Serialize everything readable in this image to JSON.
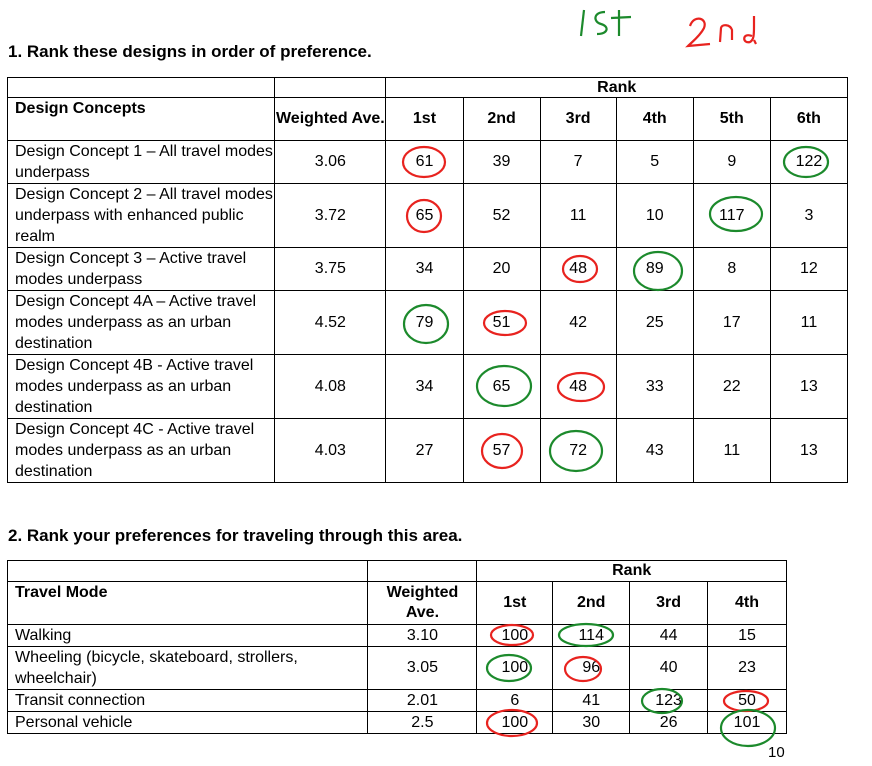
{
  "handwriting": {
    "first": "1st",
    "second": "2nd"
  },
  "q1": {
    "title": "1.  Rank these designs in order of preference.",
    "rank_header": "Rank",
    "col_concepts": "Design Concepts",
    "col_weighted": "Weighted Ave.",
    "ranks": [
      "1st",
      "2nd",
      "3rd",
      "4th",
      "5th",
      "6th"
    ],
    "rows": [
      {
        "name": "Design Concept 1 – All travel modes underpass",
        "avg": "3.06",
        "vals": [
          "61",
          "39",
          "7",
          "5",
          "9",
          "122"
        ]
      },
      {
        "name": "Design Concept 2 – All travel modes underpass with enhanced public realm",
        "avg": "3.72",
        "vals": [
          "65",
          "52",
          "11",
          "10",
          "117",
          "3"
        ]
      },
      {
        "name": "Design Concept 3 – Active travel modes underpass",
        "avg": "3.75",
        "vals": [
          "34",
          "20",
          "48",
          "89",
          "8",
          "12"
        ]
      },
      {
        "name": "Design Concept 4A – Active travel modes underpass as an urban destination",
        "avg": "4.52",
        "vals": [
          "79",
          "51",
          "42",
          "25",
          "17",
          "11"
        ]
      },
      {
        "name": "Design Concept 4B - Active travel modes underpass as an urban destination",
        "avg": "4.08",
        "vals": [
          "34",
          "65",
          "48",
          "33",
          "22",
          "13"
        ]
      },
      {
        "name": "Design Concept 4C - Active travel modes underpass as an urban destination",
        "avg": "4.03",
        "vals": [
          "27",
          "57",
          "72",
          "43",
          "11",
          "13"
        ]
      }
    ]
  },
  "q2": {
    "title": "2.  Rank your preferences for traveling through this area.",
    "rank_header": "Rank",
    "col_mode": "Travel Mode",
    "col_weighted": "Weighted Ave.",
    "ranks": [
      "1st",
      "2nd",
      "3rd",
      "4th"
    ],
    "rows": [
      {
        "name": "Walking",
        "avg": "3.10",
        "vals": [
          "100",
          "114",
          "44",
          "15"
        ]
      },
      {
        "name": "Wheeling (bicycle, skateboard, strollers, wheelchair)",
        "avg": "3.05",
        "vals": [
          "100",
          "96",
          "40",
          "23"
        ]
      },
      {
        "name": "Transit connection",
        "avg": "2.01",
        "vals": [
          "6",
          "41",
          "123",
          "50"
        ]
      },
      {
        "name": "Personal vehicle",
        "avg": "2.5",
        "vals": [
          "100",
          "30",
          "26",
          "101"
        ]
      }
    ]
  },
  "page_number": "10",
  "colors": {
    "red_ink": "#e8231f",
    "green_ink": "#1c8a2c"
  }
}
